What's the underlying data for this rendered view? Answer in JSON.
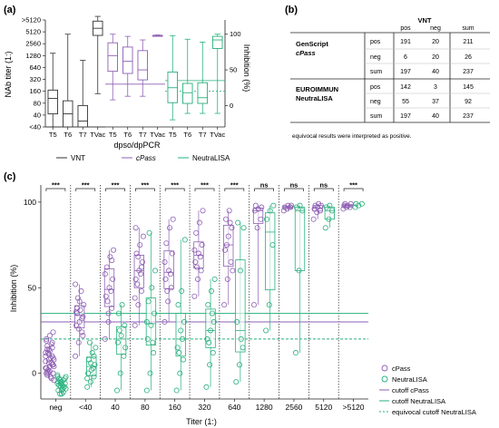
{
  "colors": {
    "vnt": "#333333",
    "cpass": "#8e5fb4",
    "neutralisa": "#27b07d",
    "axis": "#222222",
    "cutoff_cpass": "#8e5fb4",
    "cutoff_neutralisa": "#27b07d"
  },
  "panel_a": {
    "label": "(a)",
    "left_axis_label": "NAb titer (1:)",
    "right_axis_label": "Inhibition (%)",
    "x_axis_label": "dpso/dpPCR",
    "legend": {
      "vnt": "VNT",
      "cpass": "cPass",
      "neutralisa": "NeutraLISA"
    }
  },
  "panel_b": {
    "label": "(b)",
    "vnt_header": "VNT",
    "col_headers": [
      "pos",
      "neg",
      "sum"
    ],
    "groups": [
      {
        "name": "GenScript cPass",
        "rows": [
          {
            "label": "pos",
            "values": [
              "191",
              "20",
              "211"
            ]
          },
          {
            "label": "neg",
            "values": [
              "6",
              "20",
              "26"
            ]
          },
          {
            "label": "sum",
            "values": [
              "197",
              "40",
              "237"
            ]
          }
        ]
      },
      {
        "name": "EUROIMMUN NeutraLISA",
        "rows": [
          {
            "label": "pos",
            "values": [
              "142",
              "3",
              "145"
            ]
          },
          {
            "label": "neg",
            "values": [
              "55",
              "37",
              "92"
            ]
          },
          {
            "label": "sum",
            "values": [
              "197",
              "40",
              "237"
            ]
          }
        ]
      }
    ],
    "note": "equivocal results were interpreted as positive."
  },
  "panel_c": {
    "label": "(c)",
    "legend": {
      "cpass": "cPass",
      "neutralisa": "NeutraLISA",
      "cutoff_cpass": "cutoff cPass",
      "cutoff_neutralisa": "cutoff NeutraLISA",
      "equivocal_cutoff_neutralisa": "equivocal cutoff NeutraLISA"
    }
  },
  "chart_data": [
    {
      "panel": "a",
      "type": "box",
      "xlabel": "dpso/dpPCR",
      "ylabel": "NAb titer (1:)",
      "y2label": "Inhibition (%)",
      "categories": [
        "T5",
        "T6",
        "T7",
        "TVac",
        "T5",
        "T6",
        "T7",
        "TVac",
        "T5",
        "T6",
        "T7",
        "TVac"
      ],
      "y_ticks": [
        "<40",
        "40",
        "80",
        "160",
        "320",
        "640",
        "1280",
        "2560",
        "5120",
        ">5120"
      ],
      "y2_ticks": [
        "0",
        "50",
        "100"
      ],
      "y2lim": [
        -30,
        120
      ],
      "series": [
        {
          "name": "VNT",
          "axis": "titer_steps",
          "boxes": [
            {
              "min": 0,
              "q1": 1.1,
              "median": 2.4,
              "q3": 3.1,
              "max": 6.2
            },
            {
              "min": 0,
              "q1": 0,
              "median": 1.1,
              "q3": 2.2,
              "max": 7.8
            },
            {
              "min": 0,
              "q1": 0,
              "median": 0.5,
              "q3": 1.8,
              "max": 5.6
            },
            {
              "min": 2.8,
              "q1": 7.7,
              "median": 8.3,
              "q3": 8.9,
              "max": 9.3
            }
          ]
        },
        {
          "name": "cPass",
          "axis": "inhibition",
          "boxes": [
            {
              "min": 8,
              "q1": 48,
              "median": 70,
              "q3": 88,
              "max": 100
            },
            {
              "min": 13,
              "q1": 45,
              "median": 62,
              "q3": 82,
              "max": 97
            },
            {
              "min": 13,
              "q1": 36,
              "median": 50,
              "q3": 77,
              "max": 92
            },
            {
              "min": 97,
              "q1": 97,
              "median": 98,
              "q3": 98.5,
              "max": 99
            }
          ]
        },
        {
          "name": "NeutraLISA",
          "axis": "inhibition",
          "boxes": [
            {
              "min": -20,
              "q1": 4,
              "median": 25,
              "q3": 47,
              "max": 98
            },
            {
              "min": -11,
              "q1": 3,
              "median": 18,
              "q3": 31,
              "max": 93
            },
            {
              "min": -11,
              "q1": 3,
              "median": 11,
              "q3": 32,
              "max": 89
            },
            {
              "min": -11,
              "q1": 80,
              "median": 92,
              "q3": 97,
              "max": 100
            }
          ]
        }
      ],
      "cutoffs": [
        {
          "series": "VNT",
          "value": 0,
          "style": "solid"
        },
        {
          "series": "cPass",
          "value": 30,
          "style": "solid"
        },
        {
          "series": "NeutraLISA",
          "value": 35,
          "style": "solid"
        },
        {
          "series": "NeutraLISA",
          "value": 20,
          "style": "dashed"
        }
      ]
    },
    {
      "panel": "c",
      "type": "scatter",
      "xlabel": "Titer (1:)",
      "ylabel": "Inhibition (%)",
      "categories": [
        "neg",
        "<40",
        "40",
        "80",
        "160",
        "320",
        "640",
        "1280",
        "2560",
        "5120",
        ">5120"
      ],
      "significance": [
        "***",
        "***",
        "***",
        "***",
        "***",
        "***",
        "***",
        "ns",
        "ns",
        "ns",
        "***"
      ],
      "y_ticks": [
        0,
        50,
        100
      ],
      "ylim": [
        -15,
        110
      ],
      "cutoffs": {
        "cPass": 30,
        "NeutraLISA": 35,
        "NeutraLISA_equivocal": 20
      },
      "series": [
        {
          "name": "cPass",
          "points": [
            [
              12,
              8,
              5,
              3,
              1,
              0,
              -1,
              -2,
              -4,
              2,
              6,
              10,
              14,
              18,
              20,
              22,
              24,
              16,
              9,
              4,
              0,
              -3,
              7,
              11,
              15,
              19,
              13,
              5,
              1,
              -2,
              8,
              12,
              17,
              3,
              6,
              10,
              0,
              4,
              9,
              14
            ],
            [
              10,
              18,
              24,
              28,
              30,
              33,
              35,
              37,
              40,
              44,
              48,
              52,
              26,
              32,
              36,
              42,
              22,
              38
            ],
            [
              20,
              30,
              38,
              45,
              50,
              55,
              62,
              68,
              72,
              42,
              48,
              58,
              35,
              66
            ],
            [
              28,
              40,
              48,
              55,
              60,
              65,
              70,
              75,
              80,
              52,
              58,
              44,
              68,
              62,
              85
            ],
            [
              30,
              42,
              50,
              55,
              60,
              70,
              76,
              85,
              90,
              48,
              58,
              65
            ],
            [
              45,
              55,
              60,
              65,
              70,
              75,
              82,
              88,
              95,
              62,
              68,
              72
            ],
            [
              40,
              55,
              65,
              72,
              80,
              85,
              90,
              95,
              60,
              75,
              88
            ],
            [
              40,
              85,
              90,
              95,
              96,
              97,
              98
            ],
            [
              95,
              96,
              97,
              97,
              98,
              98
            ],
            [
              90,
              94,
              95,
              96,
              97,
              98,
              98,
              99
            ],
            [
              96,
              97,
              97,
              98,
              98,
              99,
              99
            ]
          ]
        },
        {
          "name": "NeutraLISA",
          "points": [
            [
              -2,
              -5,
              -8,
              -10,
              -12,
              -6,
              -3,
              -7,
              -9,
              -4,
              -11,
              -1,
              -6,
              -8,
              -5,
              -10,
              -3,
              -7,
              -9,
              -2,
              -12,
              -4,
              -6,
              -8
            ],
            [
              -8,
              -5,
              -2,
              0,
              2,
              5,
              8,
              12,
              15,
              18,
              3,
              -3,
              6,
              10
            ],
            [
              -10,
              0,
              10,
              18,
              22,
              28,
              35,
              40,
              15,
              25
            ],
            [
              -10,
              0,
              12,
              20,
              28,
              35,
              42,
              50,
              60,
              82,
              18,
              30
            ],
            [
              -10,
              0,
              8,
              15,
              25,
              30,
              40,
              48,
              78,
              12,
              20
            ],
            [
              -8,
              5,
              12,
              20,
              25,
              30,
              40,
              48,
              55,
              18,
              35
            ],
            [
              -5,
              5,
              15,
              30,
              60,
              85,
              88,
              20
            ],
            [
              25,
              40,
              75,
              90,
              95,
              98
            ],
            [
              12,
              60,
              95,
              97,
              98
            ],
            [
              85,
              90,
              95,
              97,
              98
            ],
            [
              97,
              98,
              99,
              99
            ]
          ]
        }
      ]
    }
  ]
}
